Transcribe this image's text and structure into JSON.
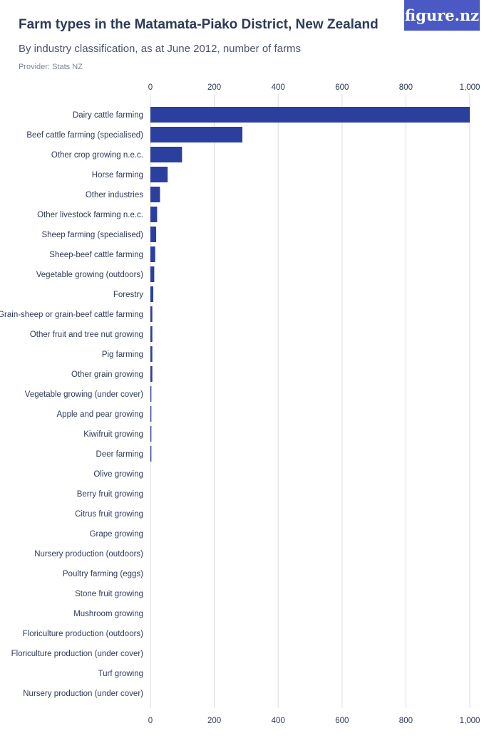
{
  "header": {
    "title": "Farm types in the Matamata-Piako District, New Zealand",
    "subtitle": "By industry classification, as at June 2012, number of farms",
    "provider": "Provider: Stats NZ",
    "logo_text": "figure.nz"
  },
  "colors": {
    "bar": "#2b3f9e",
    "grid": "#d9dbe3",
    "logo_bg": "#4a59c3"
  },
  "chart_data": {
    "type": "bar",
    "orientation": "horizontal",
    "title": "Farm types in the Matamata-Piako District, New Zealand",
    "subtitle": "By industry classification, as at June 2012, number of farms",
    "xlim": [
      0,
      1000
    ],
    "ticks": [
      0,
      200,
      400,
      600,
      800,
      1000
    ],
    "tick_labels": [
      "0",
      "200",
      "400",
      "600",
      "800",
      "1,000"
    ],
    "grid": true,
    "categories": [
      "Dairy cattle farming",
      "Beef cattle farming (specialised)",
      "Other crop growing n.e.c.",
      "Horse farming",
      "Other industries",
      "Other livestock farming n.e.c.",
      "Sheep farming (specialised)",
      "Sheep-beef cattle farming",
      "Vegetable growing (outdoors)",
      "Forestry",
      "Grain-sheep or grain-beef cattle farming",
      "Other fruit and tree nut growing",
      "Pig farming",
      "Other grain growing",
      "Vegetable growing (under cover)",
      "Apple and pear growing",
      "Kiwifruit growing",
      "Deer farming",
      "Olive growing",
      "Berry fruit growing",
      "Citrus fruit growing",
      "Grape growing",
      "Nursery production (outdoors)",
      "Poultry farming (eggs)",
      "Stone fruit growing",
      "Mushroom growing",
      "Floriculture production (outdoors)",
      "Floriculture production (under cover)",
      "Turf growing",
      "Nursery production (under cover)"
    ],
    "values": [
      1000,
      288,
      99,
      54,
      30,
      21,
      18,
      15,
      12,
      9,
      6,
      6,
      6,
      6,
      3,
      3,
      3,
      3,
      0,
      0,
      0,
      0,
      0,
      0,
      0,
      0,
      0,
      0,
      0,
      0
    ]
  }
}
